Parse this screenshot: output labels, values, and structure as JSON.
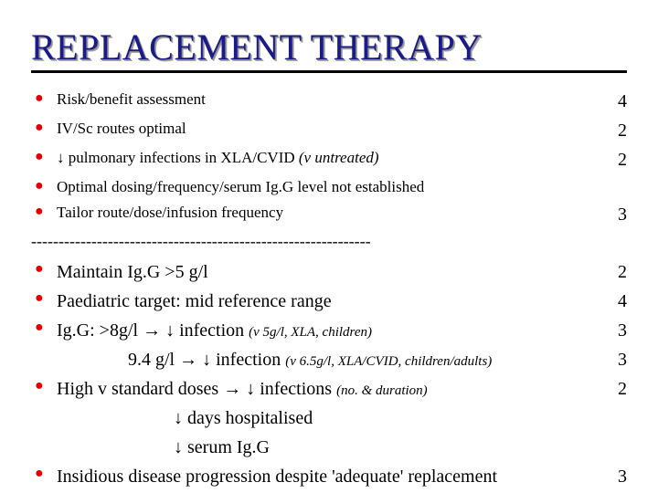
{
  "title": "REPLACEMENT THERAPY",
  "bullet_glyph": "●",
  "arrow_down": "↓",
  "arrow_right": "→",
  "separator": "--------------------------------------------------------------",
  "colors": {
    "title": "#1a1a8a",
    "bullet": "#e00000",
    "text": "#000000",
    "bg": "#ffffff",
    "underline": "#000000"
  },
  "fonts": {
    "family": "Times New Roman",
    "title_size": 40,
    "sec1_size": 17,
    "sec2_size": 20,
    "num_size": 20
  },
  "sec1": [
    {
      "text": "Risk/benefit assessment",
      "num": "4"
    },
    {
      "text": "IV/Sc routes optimal",
      "num": "2"
    },
    {
      "pre_arrow": true,
      "text": "pulmonary infections in XLA/CVID ",
      "ital": "(v untreated)",
      "num": "2"
    },
    {
      "text": "Optimal dosing/frequency/serum Ig.G level not established",
      "num": ""
    },
    {
      "text": "Tailor route/dose/infusion frequency",
      "num": "3"
    }
  ],
  "sec2": [
    {
      "lines": [
        {
          "plain": "Maintain Ig.G >5 g/l"
        }
      ],
      "num": "2"
    },
    {
      "lines": [
        {
          "plain": "Paediatric target: mid reference range"
        }
      ],
      "num": "4"
    },
    {
      "lines": [
        {
          "plain": "Ig.G: >8g/l ",
          "right_arrow": true,
          "down_arrow": true,
          "after": " infection ",
          "paren": "(v 5g/l, XLA, children)"
        }
      ],
      "num": "3"
    },
    {
      "nobullet": true,
      "lines": [
        {
          "indent": 1,
          "plain": "9.4 g/l ",
          "right_arrow": true,
          "down_arrow": true,
          "after": " infection ",
          "paren": "(v 6.5g/l, XLA/CVID, children/adults)"
        }
      ],
      "num": "3"
    },
    {
      "lines": [
        {
          "plain": "High v standard doses ",
          "right_arrow": true,
          "down_arrow": true,
          "after": " infections ",
          "paren": "(no. & duration)"
        }
      ],
      "num": "2"
    },
    {
      "nobullet": true,
      "lines": [
        {
          "indent": 2,
          "down_arrow": true,
          "after": " days hospitalised"
        }
      ],
      "num": ""
    },
    {
      "nobullet": true,
      "lines": [
        {
          "indent": 2,
          "down_arrow": true,
          "after": " serum Ig.G"
        }
      ],
      "num": ""
    },
    {
      "lines": [
        {
          "plain": "Insidious disease progression despite 'adequate' replacement"
        }
      ],
      "num": "3"
    }
  ]
}
